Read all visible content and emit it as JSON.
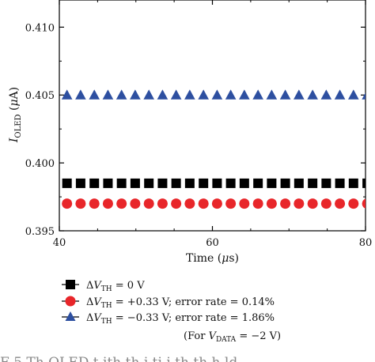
{
  "chart_data": {
    "type": "scatter",
    "xlabel_parts": [
      "Time (",
      "μ",
      "s)"
    ],
    "ylabel_parts": [
      "I",
      "OLED",
      " (",
      "μ",
      "A)"
    ],
    "xlim": [
      40,
      80
    ],
    "ylim": [
      0.395,
      0.412
    ],
    "x_ticks": [
      40,
      60,
      80
    ],
    "x_tick_labels": [
      "40",
      "60",
      "80"
    ],
    "y_ticks": [
      0.395,
      0.4,
      0.405,
      0.41
    ],
    "y_tick_labels": [
      "0.395",
      "0.400",
      "0.405",
      "0.410"
    ],
    "grid": false,
    "legend_position": "below",
    "series": [
      {
        "marker": "square",
        "color": "#000000",
        "legend_parts": [
          "Δ",
          "V",
          "TH",
          " = 0 V"
        ],
        "x": [
          41,
          42.78,
          44.57,
          46.35,
          48.13,
          49.91,
          51.7,
          53.48,
          55.26,
          57.04,
          58.83,
          60.61,
          62.39,
          64.17,
          65.96,
          67.74,
          69.52,
          71.3,
          73.09,
          74.87,
          76.65,
          78.43,
          80.22
        ],
        "y": [
          0.3985,
          0.3985,
          0.3985,
          0.3985,
          0.3985,
          0.3985,
          0.3985,
          0.3985,
          0.3985,
          0.3985,
          0.3985,
          0.3985,
          0.3985,
          0.3985,
          0.3985,
          0.3985,
          0.3985,
          0.3985,
          0.3985,
          0.3985,
          0.3985,
          0.3985,
          0.3985
        ]
      },
      {
        "marker": "circle",
        "color": "#e8262a",
        "legend_parts": [
          "Δ",
          "V",
          "TH",
          " = +0.33 V; error rate = 0.14%"
        ],
        "x": [
          41,
          42.78,
          44.57,
          46.35,
          48.13,
          49.91,
          51.7,
          53.48,
          55.26,
          57.04,
          58.83,
          60.61,
          62.39,
          64.17,
          65.96,
          67.74,
          69.52,
          71.3,
          73.09,
          74.87,
          76.65,
          78.43,
          80.22
        ],
        "y": [
          0.397,
          0.397,
          0.397,
          0.397,
          0.397,
          0.397,
          0.397,
          0.397,
          0.397,
          0.397,
          0.397,
          0.397,
          0.397,
          0.397,
          0.397,
          0.397,
          0.397,
          0.397,
          0.397,
          0.397,
          0.397,
          0.397,
          0.397
        ]
      },
      {
        "marker": "triangle",
        "color": "#2d4fa0",
        "legend_parts": [
          "Δ",
          "V",
          "TH",
          " = −0.33 V; error rate = 1.86%"
        ],
        "x": [
          41,
          42.78,
          44.57,
          46.35,
          48.13,
          49.91,
          51.7,
          53.48,
          55.26,
          57.04,
          58.83,
          60.61,
          62.39,
          64.17,
          65.96,
          67.74,
          69.52,
          71.3,
          73.09,
          74.87,
          76.65,
          78.43,
          80.22
        ],
        "y": [
          0.405,
          0.405,
          0.405,
          0.405,
          0.405,
          0.405,
          0.405,
          0.405,
          0.405,
          0.405,
          0.405,
          0.405,
          0.405,
          0.405,
          0.405,
          0.405,
          0.405,
          0.405,
          0.405,
          0.405,
          0.405,
          0.405,
          0.405
        ]
      }
    ],
    "annotation_parts": [
      "(For ",
      "V",
      "DATA",
      " = −2 V)"
    ]
  },
  "caption_fragment": "F    5  Th  OLED         t   ith th      i ti   i  th  th    h  ld"
}
